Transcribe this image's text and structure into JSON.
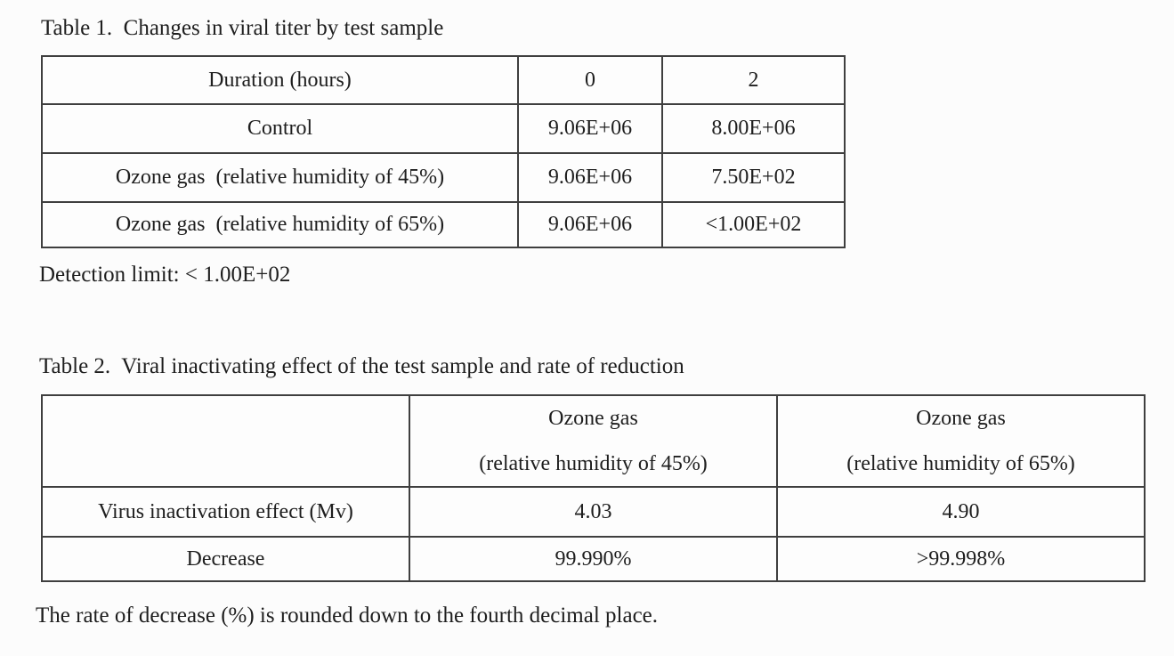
{
  "colors": {
    "background": "#fcfcfc",
    "text": "#1e1e1e",
    "table_border": "#3f3f3f"
  },
  "table1": {
    "caption": "Table 1.  Changes in viral titer by test sample",
    "header": [
      "Duration (hours)",
      "0",
      "2"
    ],
    "rows": [
      [
        "Control",
        "9.06E+06",
        "8.00E+06"
      ],
      [
        "Ozone gas  (relative humidity of 45%)",
        "9.06E+06",
        "7.50E+02"
      ],
      [
        "Ozone gas  (relative humidity of 65%)",
        "9.06E+06",
        "<1.00E+02"
      ]
    ],
    "footnote": "Detection limit: < 1.00E+02"
  },
  "table2": {
    "caption": "Table 2.  Viral inactivating effect of the test sample and rate of reduction",
    "header": [
      "",
      "Ozone gas\n(relative humidity of 45%)",
      "Ozone gas\n(relative humidity of 65%)"
    ],
    "rows": [
      [
        "Virus inactivation effect (Mv)",
        "4.03",
        "4.90"
      ],
      [
        "Decrease",
        "99.990%",
        ">99.998%"
      ]
    ],
    "footnote": "The rate of decrease (%) is rounded down to the fourth decimal place."
  }
}
